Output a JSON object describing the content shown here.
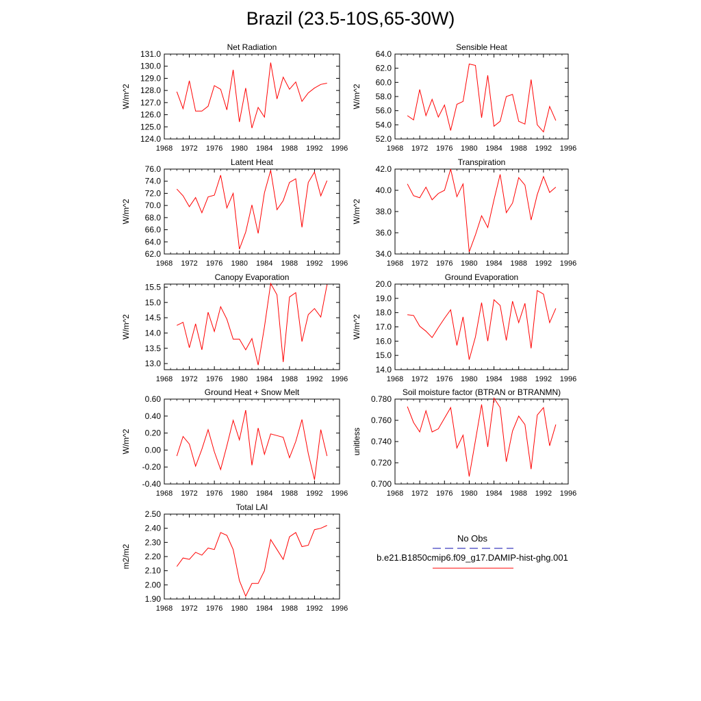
{
  "title": "Brazil (23.5-10S,65-30W)",
  "legend": {
    "obs_label": "No Obs",
    "obs_color": "#3b3bbf",
    "model_label": "b.e21.B1850cmip6.f09_g17.DAMIP-hist-ghg.001",
    "model_color": "#ff0000"
  },
  "chart_data": [
    {
      "type": "line",
      "title": "Net Radiation",
      "ylabel": "W/m^2",
      "xlim": [
        1968,
        1996
      ],
      "xticks": [
        "1968",
        "1972",
        "1976",
        "1980",
        "1984",
        "1988",
        "1992",
        "1996"
      ],
      "ylim": [
        124.0,
        131.0
      ],
      "yticks": [
        "124.0",
        "125.0",
        "126.0",
        "127.0",
        "128.0",
        "129.0",
        "130.0",
        "131.0"
      ],
      "x": [
        1970,
        1971,
        1972,
        1973,
        1974,
        1975,
        1976,
        1977,
        1978,
        1979,
        1980,
        1981,
        1982,
        1983,
        1984,
        1985,
        1986,
        1987,
        1988,
        1989,
        1990,
        1991,
        1992,
        1993,
        1994
      ],
      "series": [
        {
          "values": [
            127.9,
            126.5,
            128.8,
            126.3,
            126.3,
            126.7,
            128.4,
            128.1,
            126.4,
            129.7,
            125.4,
            128.2,
            124.9,
            126.6,
            125.8,
            130.3,
            127.3,
            129.1,
            128.1,
            128.7,
            127.1,
            127.8,
            128.2,
            128.5,
            128.6
          ]
        }
      ]
    },
    {
      "type": "line",
      "title": "Sensible Heat",
      "ylabel": "W/m^2",
      "xlim": [
        1968,
        1996
      ],
      "xticks": [
        "1968",
        "1972",
        "1976",
        "1980",
        "1984",
        "1988",
        "1992",
        "1996"
      ],
      "ylim": [
        52.0,
        64.0
      ],
      "yticks": [
        "52.0",
        "54.0",
        "56.0",
        "58.0",
        "60.0",
        "62.0",
        "64.0"
      ],
      "x": [
        1970,
        1971,
        1972,
        1973,
        1974,
        1975,
        1976,
        1977,
        1978,
        1979,
        1980,
        1981,
        1982,
        1983,
        1984,
        1985,
        1986,
        1987,
        1988,
        1989,
        1990,
        1991,
        1992,
        1993,
        1994
      ],
      "series": [
        {
          "values": [
            55.3,
            54.7,
            59.0,
            55.3,
            57.6,
            55.1,
            56.8,
            53.2,
            56.9,
            57.3,
            62.6,
            62.4,
            55.0,
            61.0,
            53.8,
            54.5,
            58.0,
            58.3,
            54.5,
            54.1,
            60.4,
            54.0,
            53.0,
            56.6,
            54.6
          ]
        }
      ]
    },
    {
      "type": "line",
      "title": "Latent Heat",
      "ylabel": "W/m^2",
      "xlim": [
        1968,
        1996
      ],
      "xticks": [
        "1968",
        "1972",
        "1976",
        "1980",
        "1984",
        "1988",
        "1992",
        "1996"
      ],
      "ylim": [
        62.0,
        76.0
      ],
      "yticks": [
        "62.0",
        "64.0",
        "66.0",
        "68.0",
        "70.0",
        "72.0",
        "74.0",
        "76.0"
      ],
      "x": [
        1970,
        1971,
        1972,
        1973,
        1974,
        1975,
        1976,
        1977,
        1978,
        1979,
        1980,
        1981,
        1982,
        1983,
        1984,
        1985,
        1986,
        1987,
        1988,
        1989,
        1990,
        1991,
        1992,
        1993,
        1994
      ],
      "series": [
        {
          "values": [
            72.7,
            71.6,
            69.8,
            71.3,
            68.8,
            71.4,
            71.7,
            75.0,
            69.6,
            72.0,
            62.8,
            65.6,
            70.1,
            65.4,
            72.1,
            75.8,
            69.3,
            70.8,
            73.8,
            74.4,
            66.4,
            73.8,
            75.5,
            71.6,
            74.1
          ]
        }
      ]
    },
    {
      "type": "line",
      "title": "Transpiration",
      "ylabel": "W/m^2",
      "xlim": [
        1968,
        1996
      ],
      "xticks": [
        "1968",
        "1972",
        "1976",
        "1980",
        "1984",
        "1988",
        "1992",
        "1996"
      ],
      "ylim": [
        34.0,
        42.0
      ],
      "yticks": [
        "34.0",
        "36.0",
        "38.0",
        "40.0",
        "42.0"
      ],
      "x": [
        1970,
        1971,
        1972,
        1973,
        1974,
        1975,
        1976,
        1977,
        1978,
        1979,
        1980,
        1981,
        1982,
        1983,
        1984,
        1985,
        1986,
        1987,
        1988,
        1989,
        1990,
        1991,
        1992,
        1993,
        1994
      ],
      "series": [
        {
          "values": [
            40.6,
            39.5,
            39.3,
            40.3,
            39.1,
            39.7,
            40.0,
            42.0,
            39.4,
            40.6,
            34.2,
            35.8,
            37.6,
            36.5,
            39.1,
            41.5,
            37.9,
            38.8,
            41.2,
            40.5,
            37.2,
            39.6,
            41.3,
            39.8,
            40.3
          ]
        }
      ]
    },
    {
      "type": "line",
      "title": "Canopy Evaporation",
      "ylabel": "W/m^2",
      "xlim": [
        1968,
        1996
      ],
      "xticks": [
        "1968",
        "1972",
        "1976",
        "1980",
        "1984",
        "1988",
        "1992",
        "1996"
      ],
      "ylim": [
        12.8,
        15.6
      ],
      "yticks": [
        "13.0",
        "13.5",
        "14.0",
        "14.5",
        "15.0",
        "15.5"
      ],
      "ytick_values": [
        13.0,
        13.5,
        14.0,
        14.5,
        15.0,
        15.5
      ],
      "x": [
        1970,
        1971,
        1972,
        1973,
        1974,
        1975,
        1976,
        1977,
        1978,
        1979,
        1980,
        1981,
        1982,
        1983,
        1984,
        1985,
        1986,
        1987,
        1988,
        1989,
        1990,
        1991,
        1992,
        1993,
        1994
      ],
      "series": [
        {
          "values": [
            14.25,
            14.35,
            13.52,
            14.3,
            13.45,
            14.68,
            14.05,
            14.86,
            14.45,
            13.8,
            13.8,
            13.45,
            13.82,
            12.95,
            14.2,
            15.62,
            15.25,
            13.05,
            15.18,
            15.32,
            13.72,
            14.6,
            14.8,
            14.52,
            15.58
          ]
        }
      ]
    },
    {
      "type": "line",
      "title": "Ground Evaporation",
      "ylabel": "W/m^2",
      "xlim": [
        1968,
        1996
      ],
      "xticks": [
        "1968",
        "1972",
        "1976",
        "1980",
        "1984",
        "1988",
        "1992",
        "1996"
      ],
      "ylim": [
        14.0,
        20.0
      ],
      "yticks": [
        "14.0",
        "15.0",
        "16.0",
        "17.0",
        "18.0",
        "19.0",
        "20.0"
      ],
      "x": [
        1970,
        1971,
        1972,
        1973,
        1974,
        1975,
        1976,
        1977,
        1978,
        1979,
        1980,
        1981,
        1982,
        1983,
        1984,
        1985,
        1986,
        1987,
        1988,
        1989,
        1990,
        1991,
        1992,
        1993,
        1994
      ],
      "series": [
        {
          "values": [
            17.85,
            17.8,
            17.05,
            16.7,
            16.25,
            16.95,
            17.6,
            18.2,
            15.7,
            17.7,
            14.7,
            16.3,
            18.7,
            16.0,
            18.9,
            18.5,
            16.05,
            18.8,
            17.3,
            18.65,
            15.5,
            19.55,
            19.3,
            17.3,
            18.3
          ]
        }
      ]
    },
    {
      "type": "line",
      "title": "Ground Heat + Snow Melt",
      "ylabel": "W/m^2",
      "xlim": [
        1968,
        1996
      ],
      "xticks": [
        "1968",
        "1972",
        "1976",
        "1980",
        "1984",
        "1988",
        "1992",
        "1996"
      ],
      "ylim": [
        -0.4,
        0.6
      ],
      "yticks": [
        "-0.40",
        "-0.20",
        "0.00",
        "0.20",
        "0.40",
        "0.60"
      ],
      "x": [
        1970,
        1971,
        1972,
        1973,
        1974,
        1975,
        1976,
        1977,
        1978,
        1979,
        1980,
        1981,
        1982,
        1983,
        1984,
        1985,
        1986,
        1987,
        1988,
        1989,
        1990,
        1991,
        1992,
        1993,
        1994
      ],
      "series": [
        {
          "values": [
            -0.07,
            0.16,
            0.07,
            -0.19,
            0.01,
            0.24,
            -0.02,
            -0.23,
            0.05,
            0.35,
            0.12,
            0.47,
            -0.18,
            0.26,
            -0.05,
            0.19,
            0.17,
            0.15,
            -0.09,
            0.1,
            0.36,
            -0.04,
            -0.35,
            0.24,
            -0.07
          ]
        }
      ]
    },
    {
      "type": "line",
      "title": "Soil moisture factor (BTRAN or BTRANMN)",
      "ylabel": "unitless",
      "xlim": [
        1968,
        1996
      ],
      "xticks": [
        "1968",
        "1972",
        "1976",
        "1980",
        "1984",
        "1988",
        "1992",
        "1996"
      ],
      "ylim": [
        0.7,
        0.78
      ],
      "yticks": [
        "0.700",
        "0.720",
        "0.740",
        "0.760",
        "0.780"
      ],
      "x": [
        1970,
        1971,
        1972,
        1973,
        1974,
        1975,
        1976,
        1977,
        1978,
        1979,
        1980,
        1981,
        1982,
        1983,
        1984,
        1985,
        1986,
        1987,
        1988,
        1989,
        1990,
        1991,
        1992,
        1993,
        1994
      ],
      "series": [
        {
          "values": [
            0.773,
            0.758,
            0.749,
            0.769,
            0.749,
            0.752,
            0.762,
            0.772,
            0.734,
            0.746,
            0.707,
            0.741,
            0.775,
            0.735,
            0.781,
            0.772,
            0.721,
            0.75,
            0.764,
            0.756,
            0.714,
            0.765,
            0.772,
            0.736,
            0.756
          ]
        }
      ]
    },
    {
      "type": "line",
      "title": "Total LAI",
      "ylabel": "m2/m2",
      "xlim": [
        1968,
        1996
      ],
      "xticks": [
        "1968",
        "1972",
        "1976",
        "1980",
        "1984",
        "1988",
        "1992",
        "1996"
      ],
      "ylim": [
        1.9,
        2.5
      ],
      "yticks": [
        "1.90",
        "2.00",
        "2.10",
        "2.20",
        "2.30",
        "2.40",
        "2.50"
      ],
      "x": [
        1970,
        1971,
        1972,
        1973,
        1974,
        1975,
        1976,
        1977,
        1978,
        1979,
        1980,
        1981,
        1982,
        1983,
        1984,
        1985,
        1986,
        1987,
        1988,
        1989,
        1990,
        1991,
        1992,
        1993,
        1994
      ],
      "series": [
        {
          "values": [
            2.13,
            2.19,
            2.18,
            2.23,
            2.21,
            2.26,
            2.25,
            2.37,
            2.35,
            2.25,
            2.03,
            1.92,
            2.01,
            2.01,
            2.1,
            2.32,
            2.25,
            2.18,
            2.34,
            2.37,
            2.27,
            2.28,
            2.39,
            2.4,
            2.42
          ]
        }
      ]
    }
  ]
}
